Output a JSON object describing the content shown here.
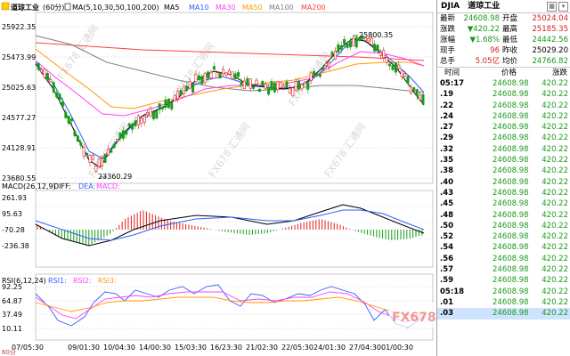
{
  "chart": {
    "title": "道琼工业",
    "period": "(60分)",
    "ma_label": "MA(5,10,30,50,100,200)",
    "ma_items": [
      {
        "label": "MA5",
        "color": "#000000"
      },
      {
        "label": "MA10",
        "color": "#3060ff"
      },
      {
        "label": "MA30",
        "color": "#ff40ff"
      },
      {
        "label": "MA50",
        "color": "#ff9a00"
      },
      {
        "label": "MA100",
        "color": "#808080"
      },
      {
        "label": "MA200",
        "color": "#ff4040"
      }
    ],
    "price_ticks": [
      "25922.35",
      "25473.99",
      "25025.63",
      "24577.27",
      "24128.91",
      "23680.55"
    ],
    "high_label": "25800.35",
    "low_label": "23360.29",
    "macd_label": "MACD(26,12,9)",
    "macd_items": [
      {
        "label": "DIFF:",
        "color": "#000000"
      },
      {
        "label": "DEA:",
        "color": "#3060ff"
      },
      {
        "label": "MACD:",
        "color": "#ff40ff"
      }
    ],
    "macd_ticks": [
      "261.93",
      "95.63",
      "-70.28",
      "-236.38"
    ],
    "rsi_label": "RSI(6,12,24)",
    "rsi_items": [
      {
        "label": "RSI1:",
        "color": "#3060ff"
      },
      {
        "label": "RSI2:",
        "color": "#ff40ff"
      },
      {
        "label": "RSI3:",
        "color": "#ff9a00"
      }
    ],
    "rsi_ticks": [
      "92.25",
      "64.87",
      "37.49",
      "10.11"
    ],
    "x_ticks": [
      "07/05:30",
      "09/01:30",
      "10/04:30",
      "14/00:30",
      "15/03:30",
      "16/23:30",
      "21/02:30",
      "22/05:30",
      "24/01:30",
      "27/04:30",
      "01/00:30"
    ],
    "corner_label": "60分",
    "watermark_top": "FX678 汇通网",
    "logo_text": "FX678 汇通网"
  },
  "quote": {
    "symbol": "DJIA",
    "name": "道琼工业",
    "rows": [
      {
        "l1": "最新",
        "v1": "24608.98",
        "c1": "green",
        "l2": "开盘",
        "v2": "25024.04",
        "c2": "red"
      },
      {
        "l1": "涨跌",
        "v1": "▼420.22",
        "c1": "green",
        "l2": "最高",
        "v2": "25185.35",
        "c2": "red"
      },
      {
        "l1": "涨幅",
        "v1": "▼1.68%",
        "c1": "green",
        "l2": "最低",
        "v2": "24442.56",
        "c2": "green"
      },
      {
        "l1": "现手",
        "v1": "96",
        "c1": "red",
        "l2": "昨收",
        "v2": "25029.20",
        "c2": "black"
      },
      {
        "l1": "总手",
        "v1": "5.05亿",
        "c1": "red",
        "l2": "均价",
        "v2": "24766.82",
        "c2": "green"
      }
    ],
    "trades_header": {
      "time": "时间",
      "price": "价格",
      "change": "涨跌"
    },
    "trades": [
      {
        "t": "05:17",
        "p": "24608.98",
        "c": "420.22"
      },
      {
        "t": ".19",
        "p": "24608.98",
        "c": "420.22"
      },
      {
        "t": ".22",
        "p": "24608.98",
        "c": "420.22"
      },
      {
        "t": ".24",
        "p": "24608.98",
        "c": "420.22"
      },
      {
        "t": ".27",
        "p": "24608.98",
        "c": "420.22"
      },
      {
        "t": ".29",
        "p": "24608.98",
        "c": "420.22"
      },
      {
        "t": ".32",
        "p": "24608.98",
        "c": "420.22"
      },
      {
        "t": ".35",
        "p": "24608.98",
        "c": "420.22"
      },
      {
        "t": ".38",
        "p": "24608.98",
        "c": "420.22"
      },
      {
        "t": ".40",
        "p": "24608.98",
        "c": "420.22"
      },
      {
        "t": ".43",
        "p": "24608.98",
        "c": "420.22"
      },
      {
        "t": ".45",
        "p": "24608.98",
        "c": "420.22"
      },
      {
        "t": ".48",
        "p": "24608.98",
        "c": "420.22"
      },
      {
        "t": ".50",
        "p": "24608.98",
        "c": "420.22"
      },
      {
        "t": ".52",
        "p": "24608.98",
        "c": "420.22"
      },
      {
        "t": ".54",
        "p": "24608.98",
        "c": "420.22"
      },
      {
        "t": ".56",
        "p": "24608.98",
        "c": "420.22"
      },
      {
        "t": ".57",
        "p": "24608.98",
        "c": "420.22"
      },
      {
        "t": ".59",
        "p": "24608.98",
        "c": "420.22"
      },
      {
        "t": "05:18",
        "p": "24608.98",
        "c": "420.22"
      },
      {
        "t": ".01",
        "p": "24608.98",
        "c": "420.22"
      },
      {
        "t": ".03",
        "p": "24608.98",
        "c": "420.22"
      }
    ]
  }
}
